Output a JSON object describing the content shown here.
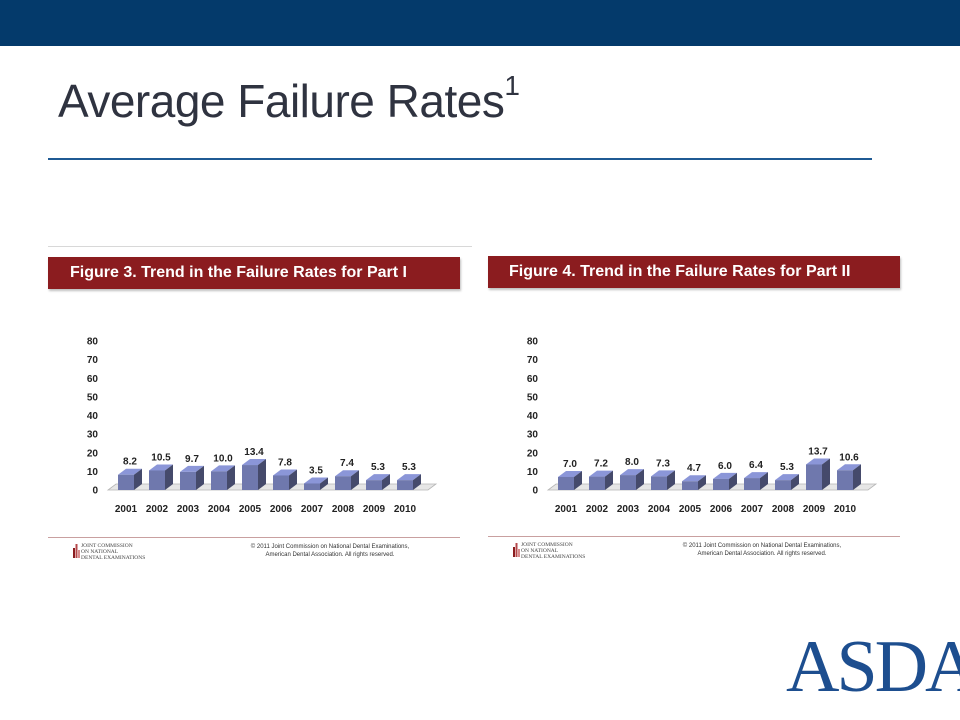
{
  "slide": {
    "title": "Average Failure Rates",
    "title_superscript": "1",
    "logo_text": "ASDA",
    "colors": {
      "topbar": "#043a6b",
      "header": "#8b1c1f",
      "bar": "#6f78ad",
      "logo": "#1d4e8f"
    }
  },
  "figures": [
    {
      "header": "Figure 3. Trend in the Failure Rates for Part I",
      "footer": {
        "org_lines": [
          "Joint Commission",
          "On National",
          "Dental Examinations"
        ],
        "copyright_lines": [
          "© 2011 Joint Commission on National Dental Examinations,",
          "American Dental Association.  All rights reserved."
        ]
      }
    },
    {
      "header": "Figure 4. Trend in the Failure Rates for Part II",
      "footer": {
        "org_lines": [
          "Joint Commission",
          "On National",
          "Dental Examinations"
        ],
        "copyright_lines": [
          "© 2011 Joint Commission on National Dental Examinations,",
          "American Dental Association.  All rights reserved."
        ]
      }
    }
  ],
  "chart_data": [
    {
      "type": "bar",
      "title": "Figure 3. Trend in the Failure Rates for Part I",
      "categories": [
        "2001",
        "2002",
        "2003",
        "2004",
        "2005",
        "2006",
        "2007",
        "2008",
        "2009",
        "2010"
      ],
      "values": [
        8.2,
        10.5,
        9.7,
        10.0,
        13.4,
        7.8,
        3.5,
        7.4,
        5.3,
        5.3
      ],
      "data_labels": [
        "8.2",
        "10.5",
        "9.7",
        "10.0",
        "13.4",
        "7.8",
        "3.5",
        "7.4",
        "5.3",
        "5.3"
      ],
      "y_ticks": [
        0,
        10,
        20,
        30,
        40,
        50,
        60,
        70,
        80
      ],
      "ylim": [
        0,
        80
      ],
      "grid": false,
      "bar_color": "#6f78ad"
    },
    {
      "type": "bar",
      "title": "Figure 4. Trend in the Failure Rates for Part II",
      "categories": [
        "2001",
        "2002",
        "2003",
        "2004",
        "2005",
        "2006",
        "2007",
        "2008",
        "2009",
        "2010"
      ],
      "values": [
        7.0,
        7.2,
        8.0,
        7.3,
        4.7,
        6.0,
        6.4,
        5.3,
        13.7,
        10.6
      ],
      "data_labels": [
        "7.0",
        "7.2",
        "8.0",
        "7.3",
        "4.7",
        "6.0",
        "6.4",
        "5.3",
        "13.7",
        "10.6"
      ],
      "y_ticks": [
        0,
        10,
        20,
        30,
        40,
        50,
        60,
        70,
        80
      ],
      "ylim": [
        0,
        80
      ],
      "grid": false,
      "bar_color": "#6f78ad"
    }
  ]
}
